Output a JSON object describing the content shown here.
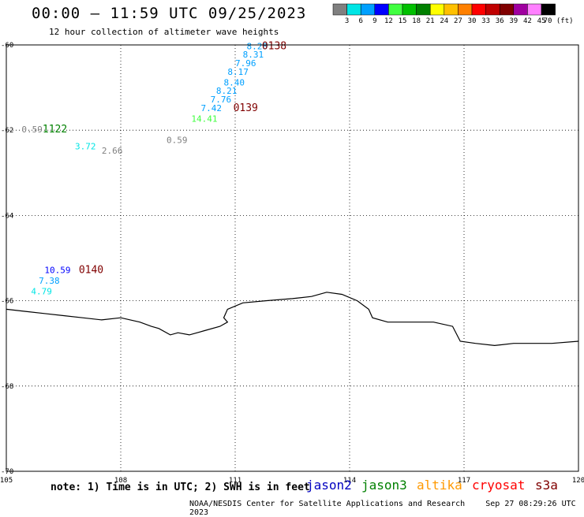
{
  "header": {
    "title": "00:00 – 11:59 UTC 09/25/2023",
    "subtitle": "12 hour collection of altimeter wave heights"
  },
  "colorbar": {
    "labels": [
      "3",
      "6",
      "9",
      "12",
      "15",
      "18",
      "21",
      "24",
      "27",
      "30",
      "33",
      "36",
      "39",
      "42",
      "45",
      "70 (ft)"
    ],
    "colors": [
      "#808080",
      "#00e5e5",
      "#00a0ff",
      "#0000ff",
      "#40ff40",
      "#00c000",
      "#008000",
      "#ffff00",
      "#ffc000",
      "#ff8000",
      "#ff0000",
      "#c00000",
      "#800000",
      "#a000a0",
      "#ff80ff",
      "#000000"
    ]
  },
  "map": {
    "lon_range": [
      105,
      120
    ],
    "lat_range": [
      -70,
      -60
    ],
    "x_ticks": [
      "105",
      "108",
      "111",
      "114",
      "117",
      "120"
    ],
    "y_ticks": [
      "-60",
      "-62",
      "-64",
      "-66",
      "-68",
      "-70"
    ],
    "coastline": [
      [
        105,
        -66.2
      ],
      [
        105.5,
        -66.25
      ],
      [
        106,
        -66.3
      ],
      [
        106.5,
        -66.35
      ],
      [
        107,
        -66.4
      ],
      [
        107.5,
        -66.45
      ],
      [
        108,
        -66.4
      ],
      [
        108.5,
        -66.5
      ],
      [
        108.8,
        -66.6
      ],
      [
        109,
        -66.65
      ],
      [
        109.3,
        -66.8
      ],
      [
        109.5,
        -66.75
      ],
      [
        109.8,
        -66.8
      ],
      [
        110.2,
        -66.7
      ],
      [
        110.6,
        -66.6
      ],
      [
        110.8,
        -66.5
      ],
      [
        110.7,
        -66.4
      ],
      [
        110.8,
        -66.2
      ],
      [
        111.2,
        -66.05
      ],
      [
        111.8,
        -66.0
      ],
      [
        112.5,
        -65.95
      ],
      [
        113,
        -65.9
      ],
      [
        113.4,
        -65.8
      ],
      [
        113.8,
        -65.85
      ],
      [
        114.2,
        -66.0
      ],
      [
        114.5,
        -66.2
      ],
      [
        114.6,
        -66.4
      ],
      [
        115,
        -66.5
      ],
      [
        115.6,
        -66.5
      ],
      [
        116.2,
        -66.5
      ],
      [
        116.7,
        -66.6
      ],
      [
        116.9,
        -66.95
      ],
      [
        117.3,
        -67.0
      ],
      [
        117.8,
        -67.05
      ],
      [
        118.3,
        -67.0
      ],
      [
        118.8,
        -67.0
      ],
      [
        119.3,
        -67.0
      ],
      [
        120,
        -66.95
      ]
    ]
  },
  "observations": [
    {
      "text": "8.28",
      "lon": 111.3,
      "lat": -60.1,
      "color": "#00a0ff"
    },
    {
      "text": "8.31",
      "lon": 111.2,
      "lat": -60.3,
      "color": "#00a0ff"
    },
    {
      "text": "7.96",
      "lon": 111.0,
      "lat": -60.5,
      "color": "#00a0ff"
    },
    {
      "text": "8.17",
      "lon": 110.8,
      "lat": -60.7,
      "color": "#00a0ff"
    },
    {
      "text": "8.40",
      "lon": 110.7,
      "lat": -60.95,
      "color": "#00a0ff"
    },
    {
      "text": "8.21",
      "lon": 110.5,
      "lat": -61.15,
      "color": "#00a0ff"
    },
    {
      "text": "7.76",
      "lon": 110.35,
      "lat": -61.35,
      "color": "#00a0ff"
    },
    {
      "text": "7.42",
      "lon": 110.1,
      "lat": -61.55,
      "color": "#00a0ff"
    },
    {
      "text": "14.41",
      "lon": 109.85,
      "lat": -61.8,
      "color": "#40ff40"
    },
    {
      "text": "0.59",
      "lon": 105.4,
      "lat": -62.05,
      "color": "#808080"
    },
    {
      "text": "3.72",
      "lon": 106.8,
      "lat": -62.45,
      "color": "#00e5e5"
    },
    {
      "text": "2.66",
      "lon": 107.5,
      "lat": -62.55,
      "color": "#808080"
    },
    {
      "text": "0.59",
      "lon": 109.2,
      "lat": -62.3,
      "color": "#808080"
    },
    {
      "text": "10.59",
      "lon": 106.0,
      "lat": -65.35,
      "color": "#0000ff"
    },
    {
      "text": "7.38",
      "lon": 105.85,
      "lat": -65.6,
      "color": "#00a0ff"
    },
    {
      "text": "4.79",
      "lon": 105.65,
      "lat": -65.85,
      "color": "#00e5e5"
    }
  ],
  "passes": [
    {
      "text": "0138",
      "lon": 111.7,
      "lat": -60.1,
      "color": "#800000"
    },
    {
      "text": "0139",
      "lon": 110.95,
      "lat": -61.55,
      "color": "#800000"
    },
    {
      "text": "1122",
      "lon": 105.95,
      "lat": -62.05,
      "color": "#008000"
    },
    {
      "text": "0140",
      "lon": 106.9,
      "lat": -65.35,
      "color": "#800000"
    }
  ],
  "footer": {
    "note": "note: 1) Time is in UTC; 2) SWH is in feet",
    "satellites": [
      {
        "name": "jason2",
        "color": "#0000c0"
      },
      {
        "name": "jason3",
        "color": "#008000"
      },
      {
        "name": "altika",
        "color": "#ff9900"
      },
      {
        "name": "cryosat",
        "color": "#ff0000"
      },
      {
        "name": "s3a",
        "color": "#800000"
      }
    ],
    "credit": "NOAA/NESDIS Center for Satellite Applications and Research",
    "timestamp": "Sep 27 08:29:26 UTC 2023"
  }
}
